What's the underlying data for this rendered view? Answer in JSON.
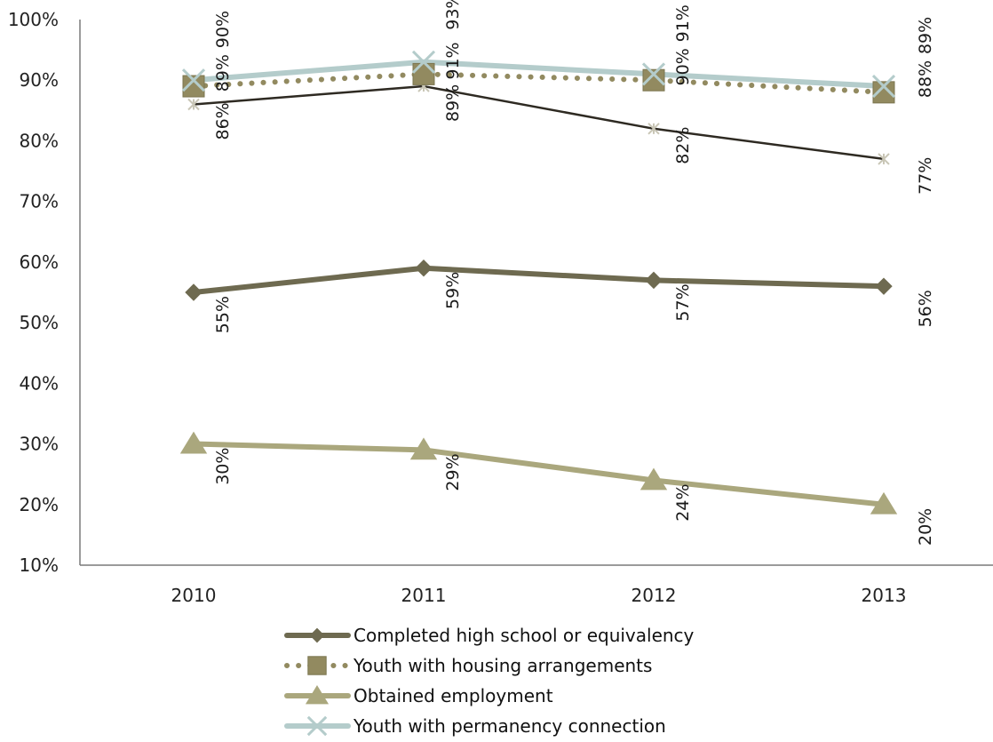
{
  "chart_data": {
    "type": "line",
    "categories": [
      "2010",
      "2011",
      "2012",
      "2013"
    ],
    "ylim": [
      10,
      100
    ],
    "yticks": [
      10,
      20,
      30,
      40,
      50,
      60,
      70,
      80,
      90,
      100
    ],
    "ytick_labels": [
      "10%",
      "20%",
      "30%",
      "40%",
      "50%",
      "60%",
      "70%",
      "80%",
      "90%",
      "100%"
    ],
    "grid": false,
    "legend_position": "bottom",
    "series": [
      {
        "name": "Completed high school or equivalency",
        "values": [
          55,
          59,
          57,
          56
        ],
        "labels": [
          "55%",
          "59%",
          "57%",
          "56%"
        ],
        "color": "#6e6a50",
        "marker": "diamond",
        "style": "solid-thick"
      },
      {
        "name": "Youth with housing arrangements",
        "values": [
          89,
          91,
          90,
          88
        ],
        "labels": [
          "89%",
          "91%",
          "90%",
          "88%"
        ],
        "color": "#928a60",
        "marker": "square",
        "style": "dotted"
      },
      {
        "name": "Obtained employment",
        "values": [
          30,
          29,
          24,
          20
        ],
        "labels": [
          "30%",
          "29%",
          "24%",
          "20%"
        ],
        "color": "#aaa77d",
        "marker": "triangle",
        "style": "solid-thick"
      },
      {
        "name": "Youth with permanency connection",
        "values": [
          90,
          93,
          91,
          89
        ],
        "labels": [
          "90%",
          "93%",
          "91%",
          "89%"
        ],
        "color": "#b4cccb",
        "marker": "x",
        "style": "solid-thick"
      },
      {
        "name": "",
        "values": [
          86,
          89,
          82,
          77
        ],
        "labels": [
          "86%",
          "89%",
          "82%",
          "77%"
        ],
        "color": "#2e2a22",
        "marker": "star",
        "style": "solid-thin",
        "in_legend": false
      }
    ]
  }
}
